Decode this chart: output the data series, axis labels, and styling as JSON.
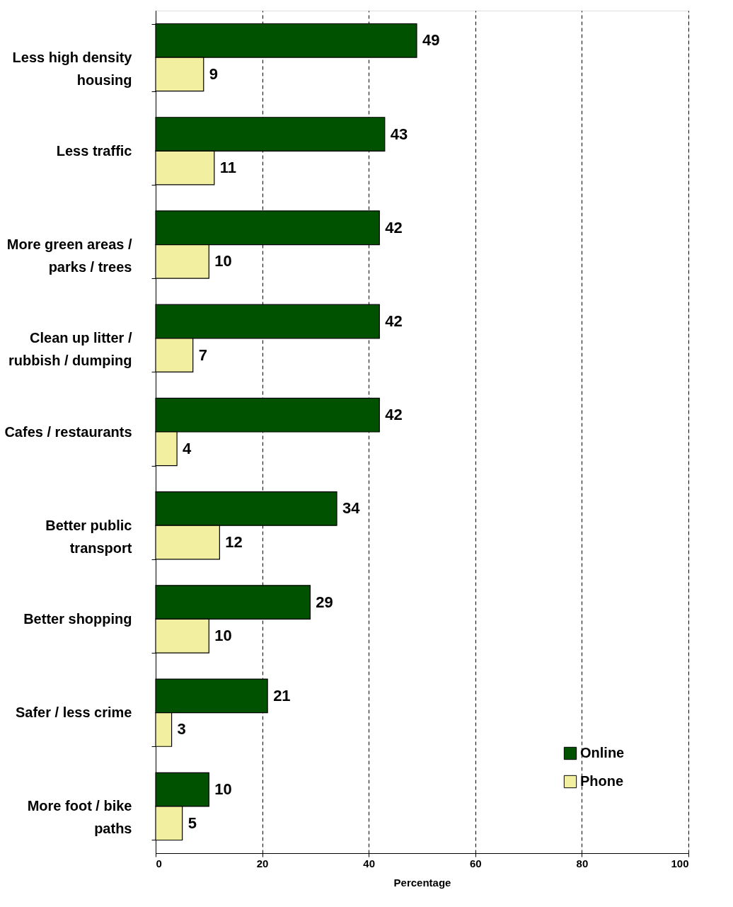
{
  "chart_data": {
    "type": "bar",
    "orientation": "horizontal",
    "xlabel": "Percentage",
    "categories": [
      "Less high density housing",
      "Less traffic",
      "More green areas / parks / trees",
      "Clean up litter / rubbish / dumping",
      "Cafes / restaurants",
      "Better public transport",
      "Better shopping",
      "Safer / less crime",
      "More foot / bike paths"
    ],
    "series": [
      {
        "name": "Online",
        "color": "#005200",
        "values": [
          49,
          43,
          42,
          42,
          42,
          34,
          29,
          21,
          10
        ]
      },
      {
        "name": "Phone",
        "color": "#f2f0a0",
        "values": [
          9,
          11,
          10,
          7,
          4,
          12,
          10,
          3,
          5
        ]
      }
    ],
    "xlim": [
      0,
      100
    ],
    "xticks": [
      0,
      20,
      40,
      60,
      80,
      100
    ],
    "grid": "x",
    "legend": "bottom right",
    "data_labels": true
  }
}
